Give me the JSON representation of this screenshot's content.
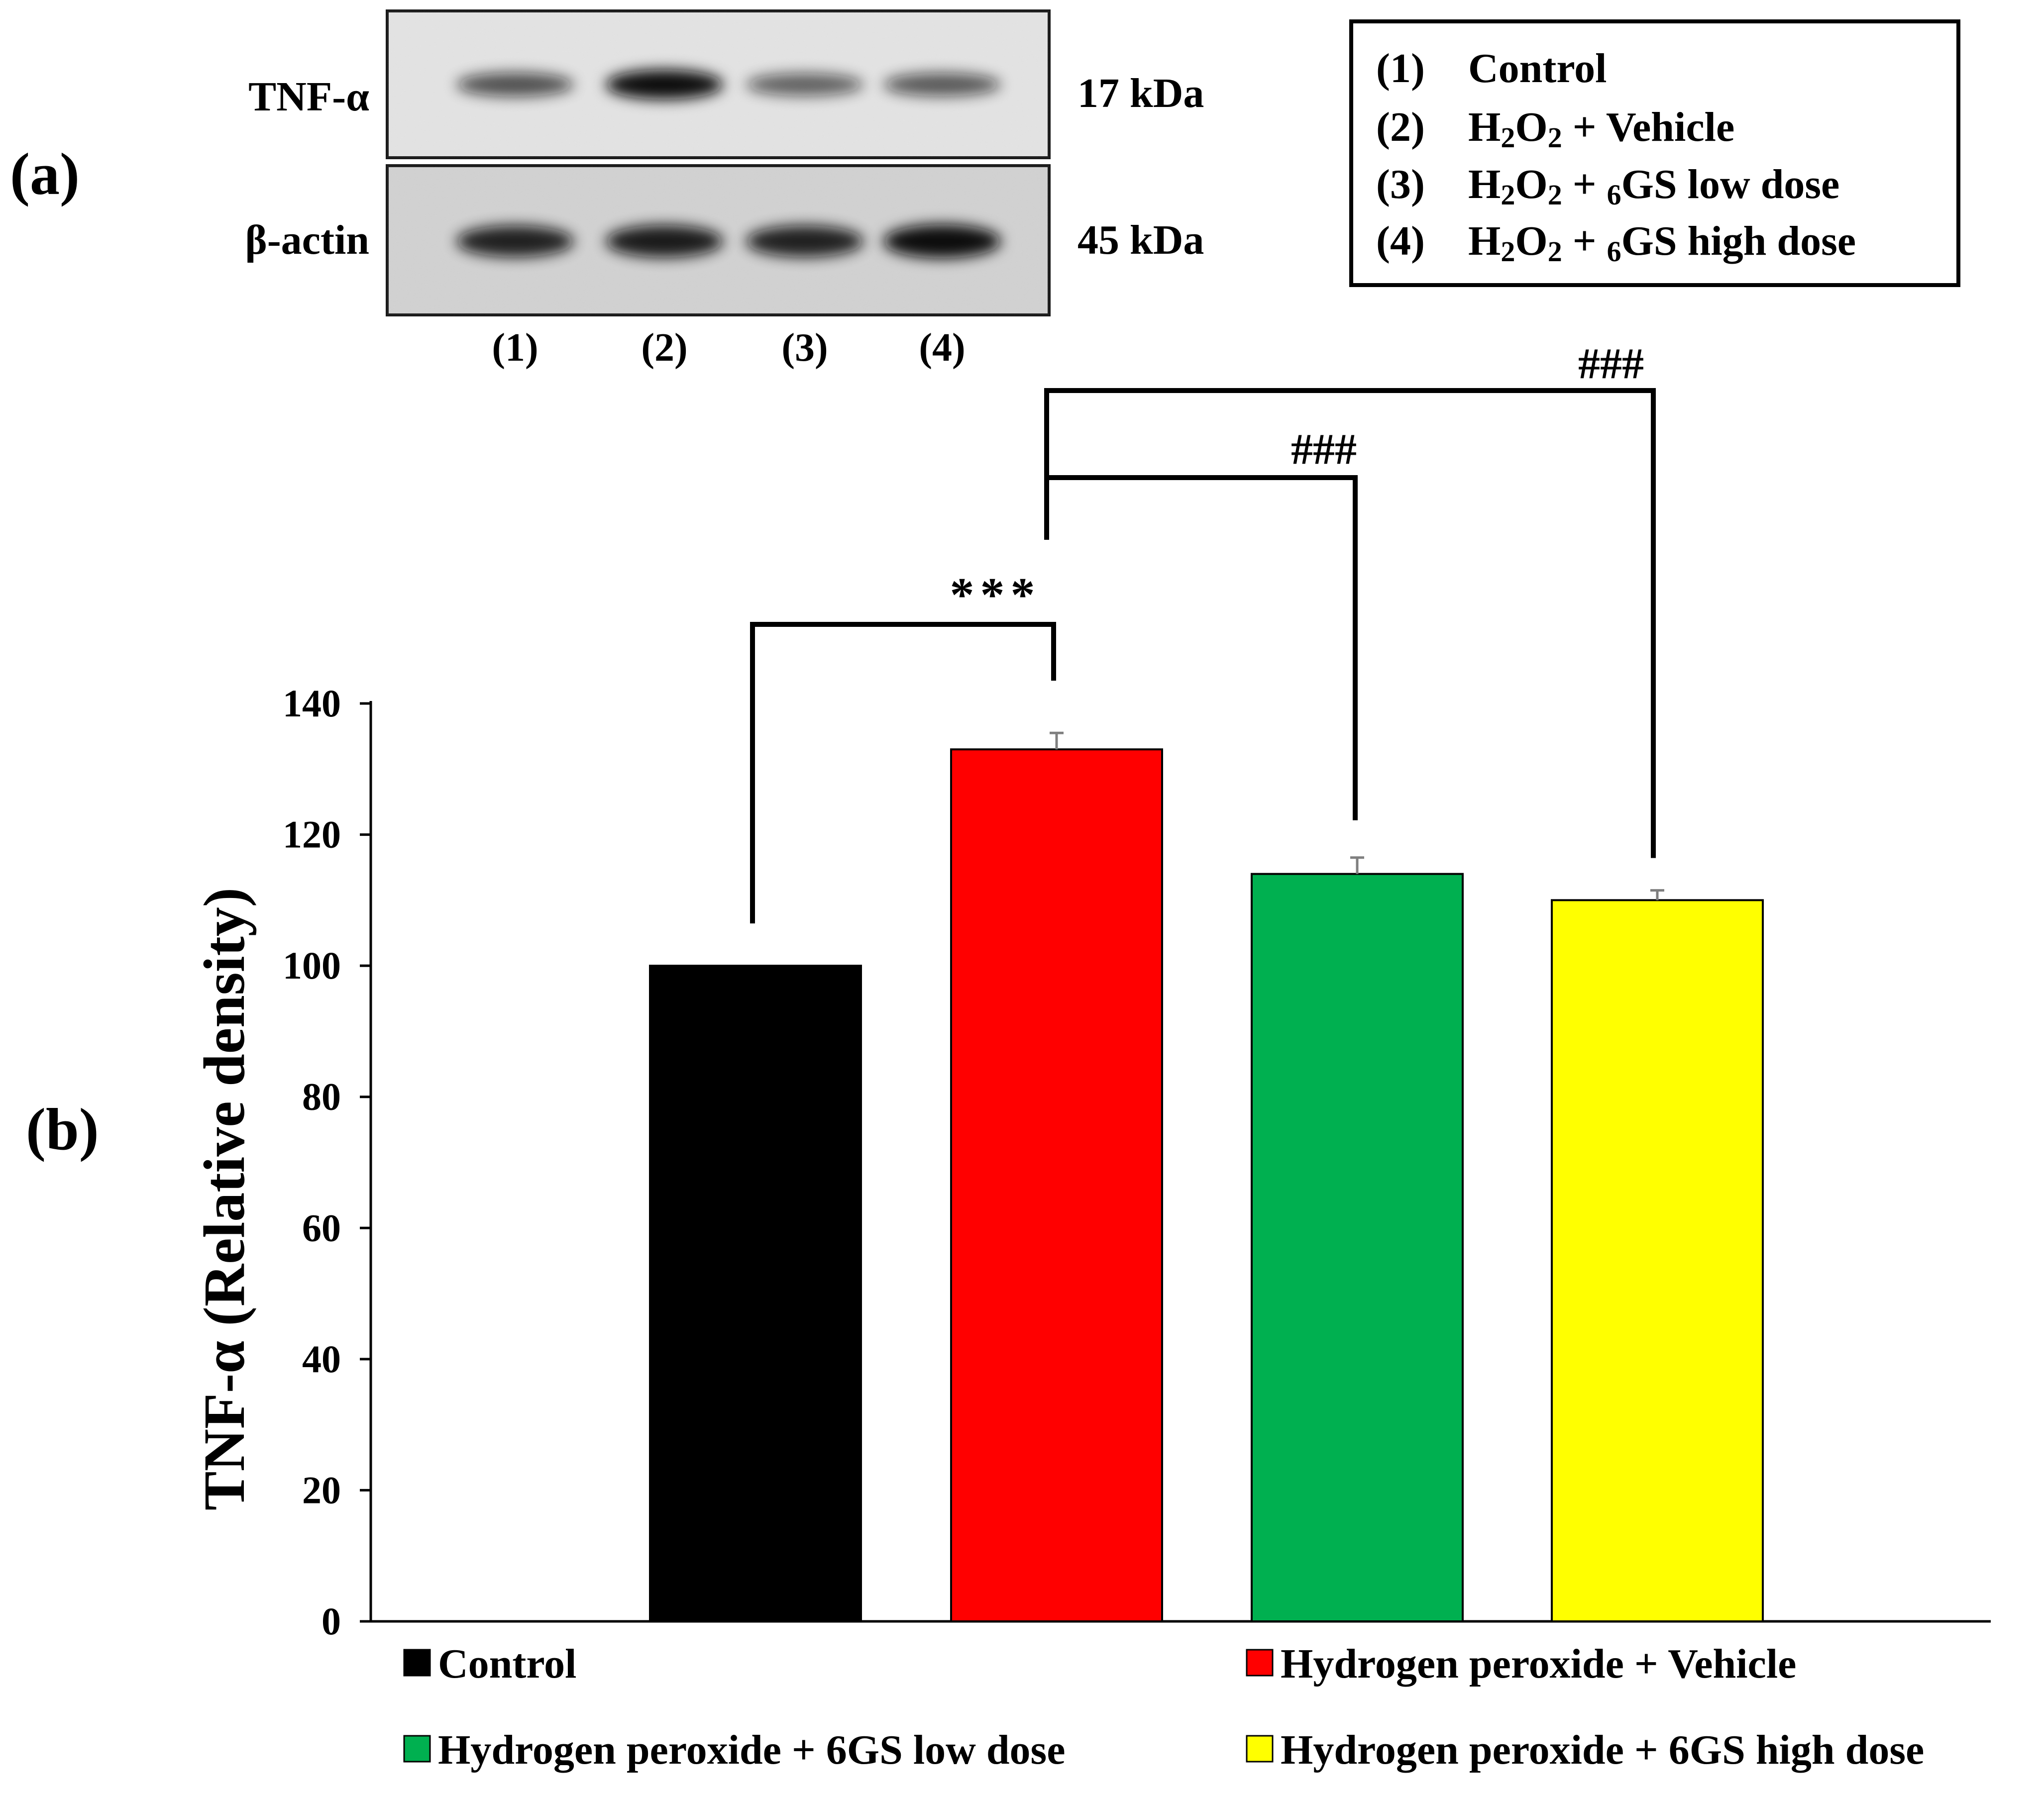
{
  "panel_a": {
    "label": "(a)",
    "blots": [
      {
        "protein": "TNF-α",
        "size": "17 kDa",
        "band_intensity": [
          0.55,
          1.0,
          0.45,
          0.5
        ]
      },
      {
        "protein": "β-actin",
        "size": "45 kDa",
        "band_intensity": [
          0.85,
          0.9,
          0.85,
          1.0
        ]
      }
    ],
    "lanes": [
      "(1)",
      "(2)",
      "(3)",
      "(4)"
    ],
    "key": [
      {
        "num": "(1)",
        "label": "Control"
      },
      {
        "num": "(2)",
        "label": "H2O2 + Vehicle"
      },
      {
        "num": "(3)",
        "label": "H2O2 + 6GS low dose"
      },
      {
        "num": "(4)",
        "label": "H2O2 + 6GS high dose"
      }
    ]
  },
  "panel_b": {
    "label": "(b)"
  },
  "chart_data": {
    "type": "bar",
    "categories": [
      "Control",
      "Hydrogen peroxide + Vehicle",
      "Hydrogen peroxide + 6GS low dose",
      "Hydrogen peroxide + 6GS high dose"
    ],
    "values": [
      100,
      133,
      114,
      110
    ],
    "errors": [
      0,
      2.5,
      2.5,
      1.5
    ],
    "colors": [
      "#000000",
      "#ff0000",
      "#00b050",
      "#ffff00"
    ],
    "title": "",
    "xlabel": "",
    "ylabel": "TNF-α (Relative density)",
    "ylim": [
      0,
      140
    ],
    "yticks": [
      0,
      20,
      40,
      60,
      80,
      100,
      120,
      140
    ],
    "grid": false,
    "legend": [
      {
        "label": "Control",
        "color": "#000000"
      },
      {
        "label": "Hydrogen peroxide + Vehicle",
        "color": "#ff0000"
      },
      {
        "label": "Hydrogen peroxide + 6GS low dose",
        "color": "#00b050"
      },
      {
        "label": "Hydrogen peroxide + 6GS high dose",
        "color": "#ffff00"
      }
    ],
    "significance": [
      {
        "from": 0,
        "to": 1,
        "label": "***"
      },
      {
        "from": 1,
        "to": 2,
        "label": "###"
      },
      {
        "from": 1,
        "to": 3,
        "label": "###"
      }
    ]
  }
}
